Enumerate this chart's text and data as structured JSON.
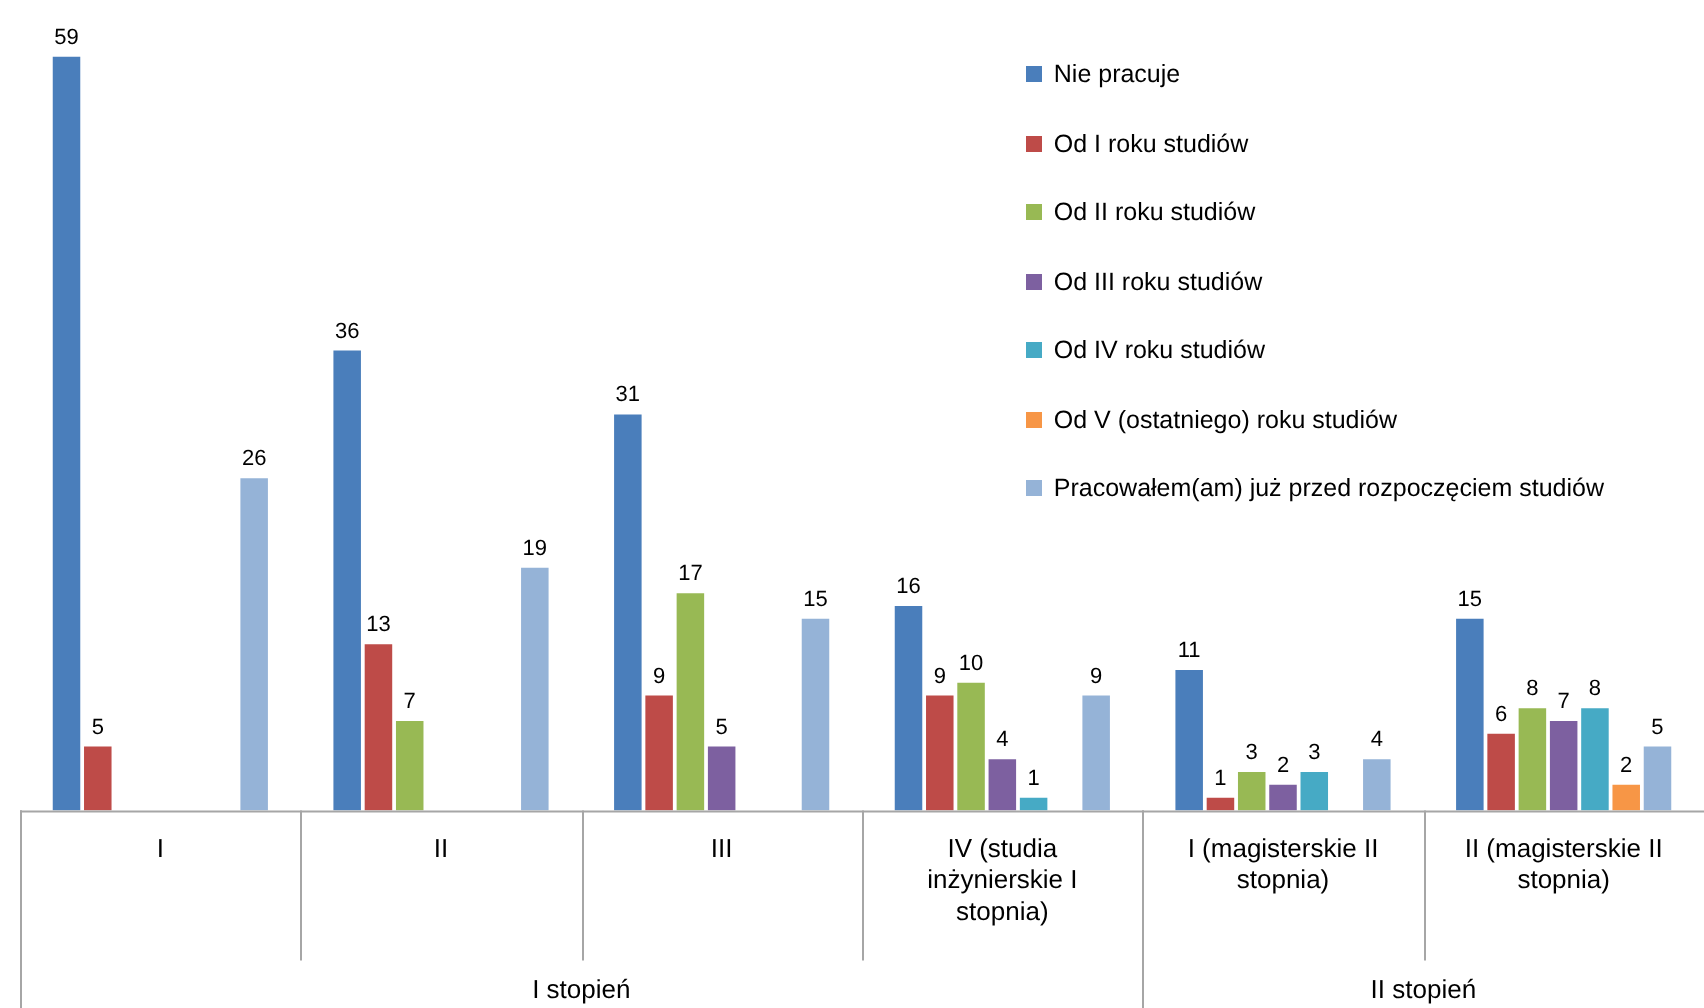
{
  "chart_data": {
    "type": "bar",
    "categories": [
      "I",
      "II",
      "III",
      "IV (studia inżynierskie I stopnia)",
      "I (magisterskie II stopnia)",
      "II (magisterskie II stopnia)"
    ],
    "series": [
      {
        "name": "Nie pracuje",
        "color": "#4a7ebb",
        "values": [
          59,
          36,
          31,
          16,
          11,
          15
        ]
      },
      {
        "name": "Od I roku studiów",
        "color": "#be4b48",
        "values": [
          5,
          13,
          9,
          9,
          1,
          6
        ]
      },
      {
        "name": "Od II roku studiów",
        "color": "#98b954",
        "values": [
          null,
          7,
          17,
          10,
          3,
          8
        ]
      },
      {
        "name": "Od III roku studiów",
        "color": "#7d60a0",
        "values": [
          null,
          null,
          5,
          4,
          2,
          7
        ]
      },
      {
        "name": "Od IV roku studiów",
        "color": "#46aac5",
        "values": [
          null,
          null,
          null,
          1,
          3,
          8
        ]
      },
      {
        "name": "Od V (ostatniego) roku studiów",
        "color": "#f79646",
        "values": [
          null,
          null,
          null,
          null,
          null,
          2
        ]
      },
      {
        "name": "Pracowałem(am) już przed rozpoczęciem studiów",
        "color": "#95b3d7",
        "values": [
          26,
          19,
          15,
          9,
          4,
          5
        ]
      }
    ],
    "data_labels": true,
    "legend": "top right",
    "grid": false,
    "annotations": [
      "I stopień",
      "II stopień"
    ]
  }
}
